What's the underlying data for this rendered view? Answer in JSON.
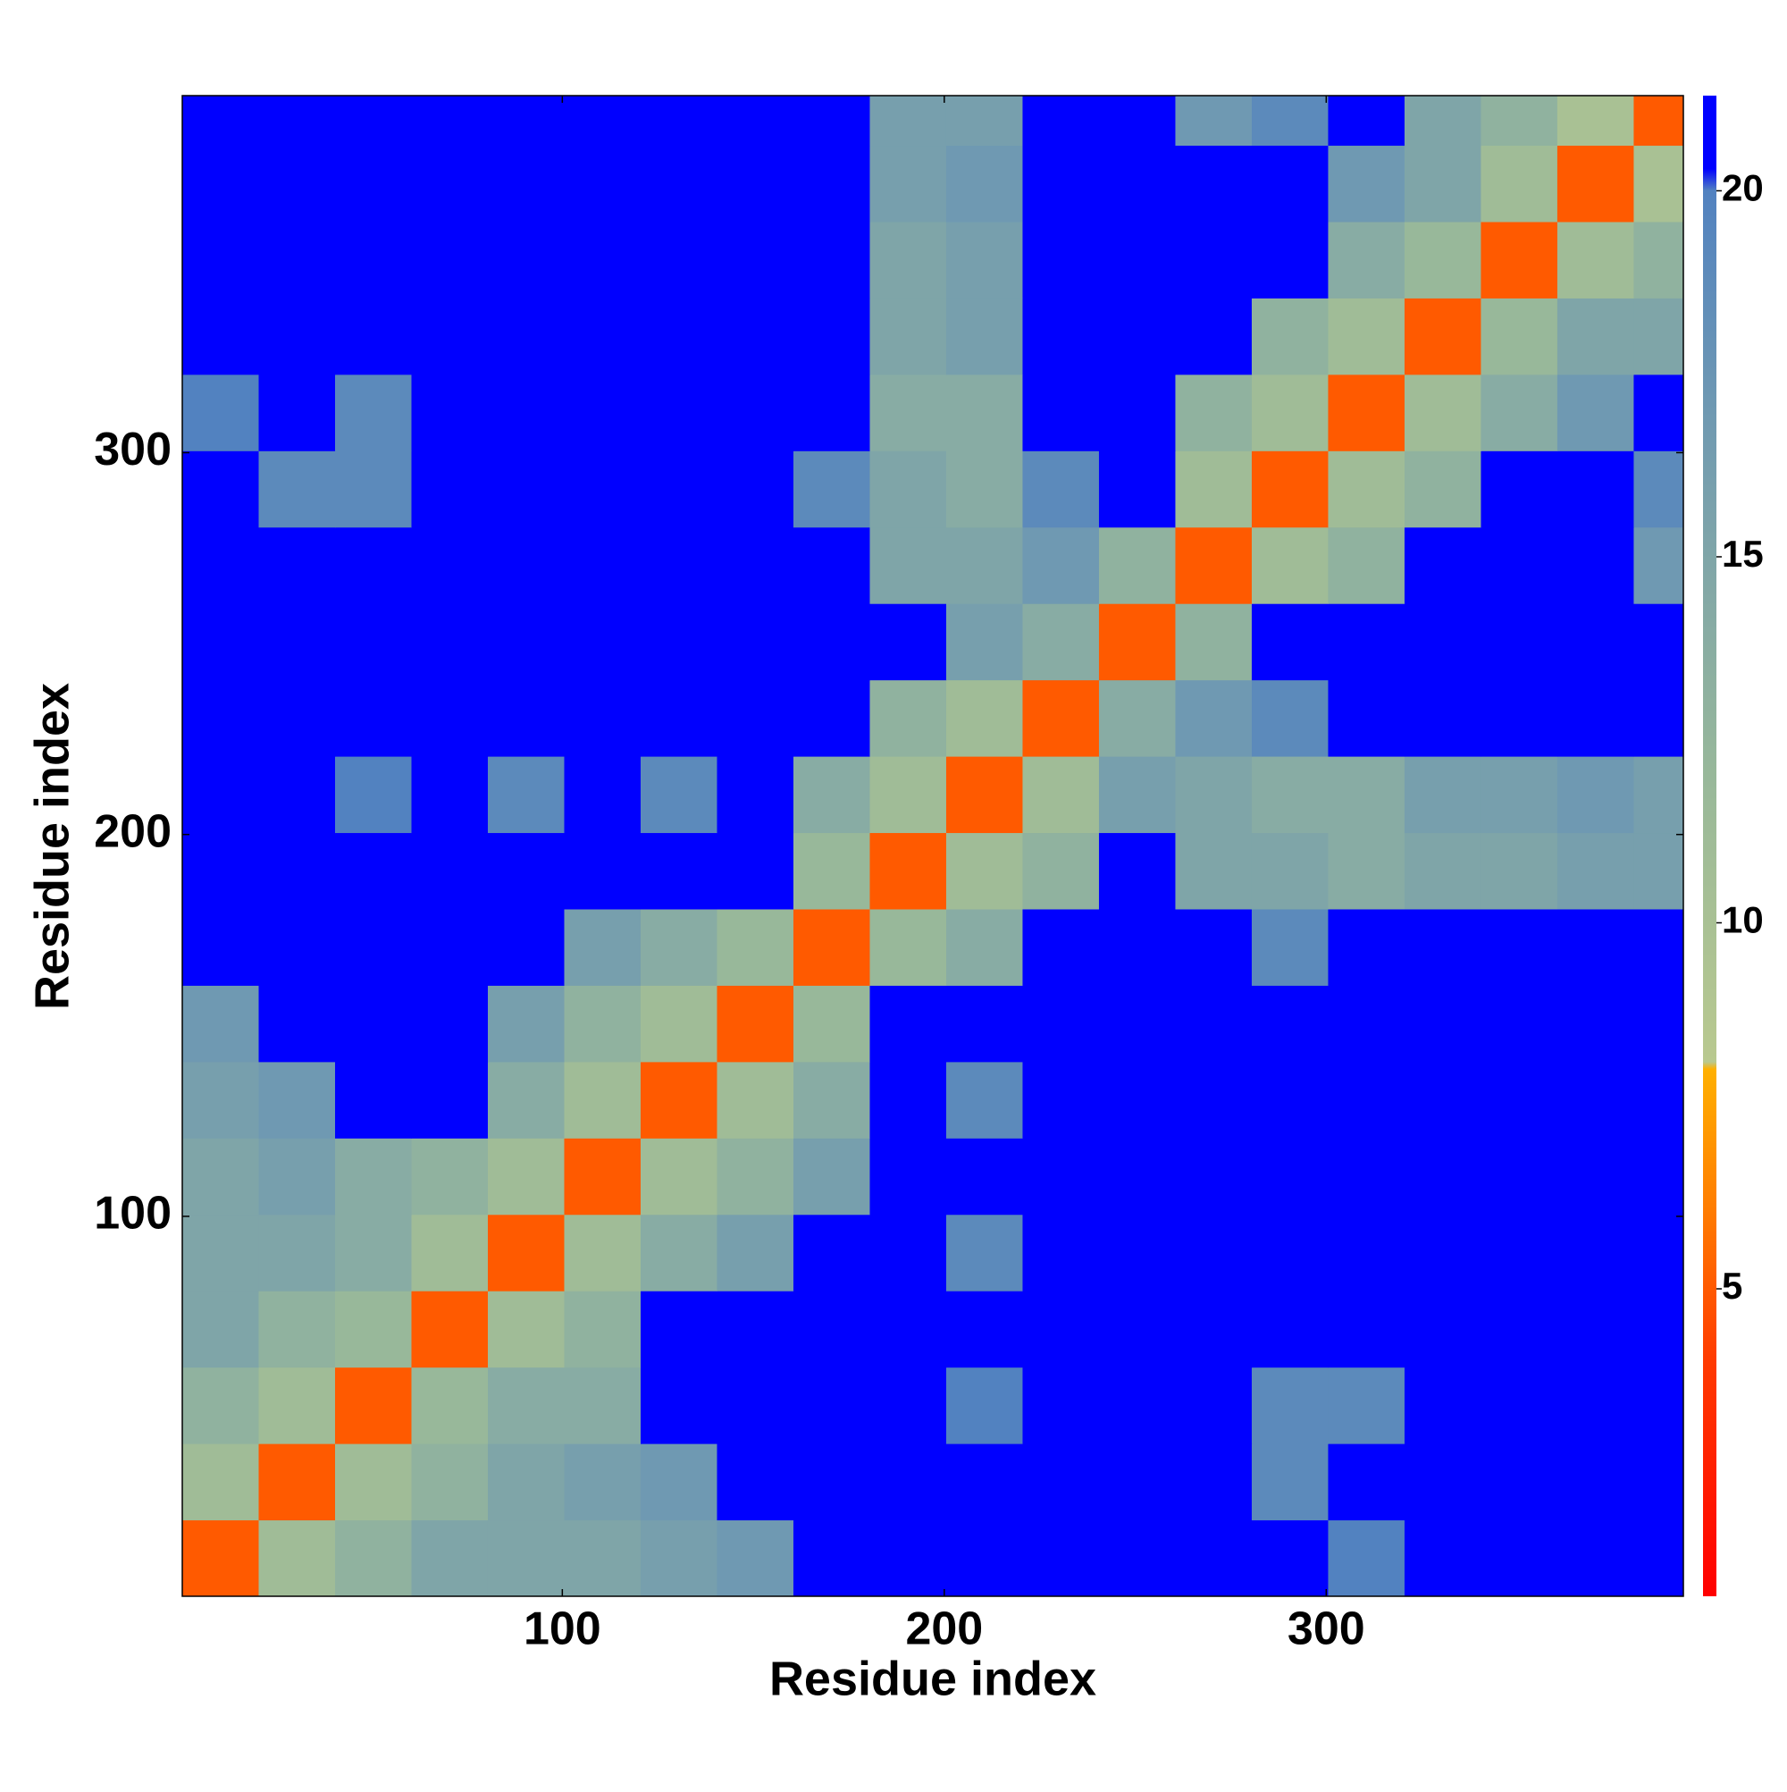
{
  "chart_data": {
    "type": "heatmap",
    "xlabel": "Residue index",
    "ylabel": "Residue index",
    "xbins": [
      0.5,
      20.5,
      40.5,
      60.5,
      80.5,
      100.5,
      120.5,
      140.5,
      160.5,
      180.5,
      200.5,
      220.5,
      240.5,
      260.5,
      280.5,
      300.5,
      320.5,
      340.5,
      360.5,
      380.5,
      393.5
    ],
    "ybins": [
      0.5,
      20.5,
      40.5,
      60.5,
      80.5,
      100.5,
      120.5,
      140.5,
      160.5,
      180.5,
      200.5,
      220.5,
      240.5,
      260.5,
      280.5,
      300.5,
      320.5,
      340.5,
      360.5,
      380.5,
      393.5
    ],
    "xlim": [
      0.5,
      393.5
    ],
    "ylim": [
      0.5,
      393.5
    ],
    "xticks": [
      100,
      200,
      300
    ],
    "yticks": [
      100,
      200,
      300
    ],
    "clim": [
      0.8,
      21.3
    ],
    "cticks": [
      5,
      10,
      15,
      20
    ],
    "colorscale": [
      [
        0.8,
        "#ff0000"
      ],
      [
        4,
        "#ff3a00"
      ],
      [
        6,
        "#ff7a00"
      ],
      [
        8,
        "#ffb000"
      ],
      [
        8.1,
        "#b9c98f"
      ],
      [
        12,
        "#98b89a"
      ],
      [
        17,
        "#6f99b2"
      ],
      [
        20,
        "#5282c0"
      ],
      [
        20.3,
        "#0000ff"
      ],
      [
        21.3,
        "#0000ff"
      ]
    ],
    "z": [
      [
        5,
        11,
        13,
        15,
        15,
        15,
        16,
        17,
        21,
        21,
        21,
        21,
        21,
        21,
        21,
        20,
        21,
        21,
        21,
        21
      ],
      [
        11,
        5,
        11,
        13,
        15,
        16,
        17,
        21,
        21,
        21,
        21,
        21,
        21,
        21,
        19,
        21,
        21,
        21,
        21,
        21
      ],
      [
        13,
        11,
        5,
        12,
        14,
        14,
        21,
        21,
        21,
        21,
        20,
        21,
        21,
        21,
        19,
        19,
        21,
        21,
        21,
        21
      ],
      [
        15,
        13,
        12,
        5,
        11,
        13,
        21,
        21,
        21,
        21,
        21,
        21,
        21,
        21,
        21,
        21,
        21,
        21,
        21,
        21
      ],
      [
        15,
        15,
        14,
        11,
        5,
        11,
        14,
        16,
        21,
        21,
        19,
        21,
        21,
        21,
        21,
        21,
        21,
        21,
        21,
        21
      ],
      [
        15,
        16,
        14,
        13,
        11,
        5,
        11,
        13,
        16,
        21,
        21,
        21,
        21,
        21,
        21,
        21,
        21,
        21,
        21,
        21
      ],
      [
        16,
        17,
        21,
        21,
        14,
        11,
        5,
        11,
        14,
        21,
        19,
        21,
        21,
        21,
        21,
        21,
        21,
        21,
        21,
        21
      ],
      [
        17,
        21,
        21,
        21,
        16,
        13,
        11,
        5,
        12,
        21,
        21,
        21,
        21,
        21,
        21,
        21,
        21,
        21,
        21,
        21
      ],
      [
        21,
        21,
        21,
        21,
        21,
        16,
        14,
        12,
        5,
        12,
        14,
        21,
        21,
        21,
        19,
        21,
        21,
        21,
        21,
        21
      ],
      [
        21,
        21,
        21,
        21,
        21,
        21,
        21,
        21,
        12,
        5,
        11,
        13,
        21,
        15,
        15,
        14,
        15,
        15,
        16,
        16
      ],
      [
        21,
        21,
        20,
        21,
        19,
        21,
        19,
        21,
        14,
        11,
        5,
        11,
        16,
        15,
        14,
        14,
        16,
        16,
        17,
        16
      ],
      [
        21,
        21,
        21,
        21,
        21,
        21,
        21,
        21,
        21,
        13,
        11,
        5,
        14,
        17,
        19,
        21,
        21,
        21,
        21,
        21
      ],
      [
        21,
        21,
        21,
        21,
        21,
        21,
        21,
        21,
        21,
        21,
        16,
        14,
        5,
        13,
        21,
        21,
        21,
        21,
        21,
        21
      ],
      [
        21,
        21,
        21,
        21,
        21,
        21,
        21,
        21,
        21,
        15,
        15,
        17,
        13,
        5,
        11,
        13,
        21,
        21,
        21,
        17
      ],
      [
        21,
        19,
        19,
        21,
        21,
        21,
        21,
        21,
        19,
        15,
        14,
        19,
        21,
        11,
        5,
        11,
        13,
        21,
        21,
        19
      ],
      [
        20,
        21,
        19,
        21,
        21,
        21,
        21,
        21,
        21,
        14,
        14,
        21,
        21,
        13,
        11,
        5,
        11,
        14,
        17,
        21
      ],
      [
        21,
        21,
        21,
        21,
        21,
        21,
        21,
        21,
        21,
        15,
        16,
        21,
        21,
        21,
        13,
        11,
        5,
        12,
        15,
        15
      ],
      [
        21,
        21,
        21,
        21,
        21,
        21,
        21,
        21,
        21,
        15,
        16,
        21,
        21,
        21,
        21,
        14,
        12,
        5,
        11,
        13
      ],
      [
        21,
        21,
        21,
        21,
        21,
        21,
        21,
        21,
        21,
        16,
        17,
        21,
        21,
        21,
        21,
        17,
        15,
        11,
        5,
        10
      ],
      [
        21,
        21,
        21,
        21,
        21,
        21,
        21,
        21,
        21,
        16,
        16,
        21,
        21,
        17,
        19,
        21,
        15,
        13,
        10,
        5
      ]
    ]
  }
}
